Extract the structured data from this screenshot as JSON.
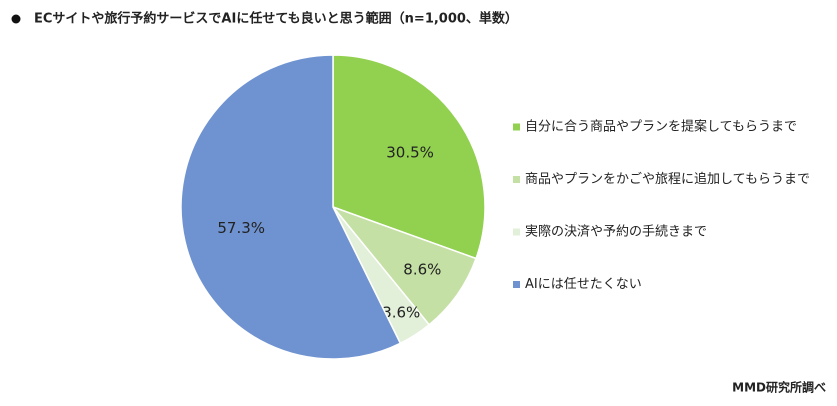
{
  "chart_data": {
    "type": "pie",
    "title": "ECサイトや旅行予約サービスでAIに任せても良いと思う範囲（n=1,000、単数）",
    "source": "MMD研究所調べ",
    "categories": [
      "自分に合う商品やプランを提案してもらうまで",
      "商品やプランをかごや旅程に追加してもらうまで",
      "実際の決済や予約の手続きまで",
      "AIには任せたくない"
    ],
    "values": [
      30.5,
      8.6,
      3.6,
      57.3
    ],
    "value_labels": [
      "30.5%",
      "8.6%",
      "3.6%",
      "57.3%"
    ],
    "colors": [
      "#92d050",
      "#c5e0a5",
      "#e2efd9",
      "#6f93d0"
    ],
    "legend": "right"
  }
}
